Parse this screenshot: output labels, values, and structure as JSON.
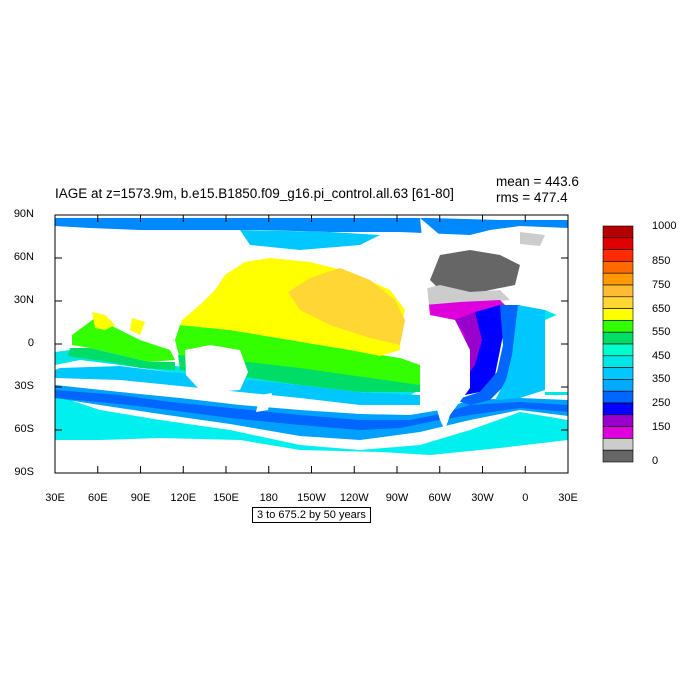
{
  "title": "IAGE at z=1573.9m, b.e15.B1850.f09_g16.pi_control.all.63 [61-80]",
  "stats": {
    "mean": "mean = 443.6",
    "rms": "rms = 477.4"
  },
  "info_box": "3 to 675.2 by 50 years",
  "map": {
    "lon_labels": [
      "30E",
      "60E",
      "90E",
      "120E",
      "150E",
      "180",
      "150W",
      "120W",
      "90W",
      "60W",
      "30W",
      "0",
      "30E"
    ],
    "lat_labels": [
      "90N",
      "60N",
      "30N",
      "0",
      "30S",
      "60S",
      "90S"
    ]
  },
  "colorbar": {
    "labels": [
      "1000",
      "850",
      "750",
      "650",
      "550",
      "450",
      "350",
      "250",
      "150",
      "0"
    ],
    "colors": [
      "#b40000",
      "#e00000",
      "#ff2a00",
      "#ff6a00",
      "#ff9900",
      "#ffbb33",
      "#ffd633",
      "#ffff00",
      "#33ff00",
      "#00dd66",
      "#00ffcc",
      "#00e6e6",
      "#00c8ff",
      "#00aaff",
      "#0066ff",
      "#0000ff",
      "#9900cc",
      "#dd00dd",
      "#cccccc",
      "#666666"
    ]
  },
  "regions": [
    {
      "name": "pacific-yellow",
      "color": "#ffff00"
    },
    {
      "name": "pacific-orange",
      "color": "#ffd633"
    },
    {
      "name": "equatorial-green",
      "color": "#33ff00"
    },
    {
      "name": "southern-ocean-blue",
      "color": "#0088ff"
    },
    {
      "name": "atlantic-purple",
      "color": "#dd00dd"
    },
    {
      "name": "nordic-gray",
      "color": "#666666"
    }
  ]
}
